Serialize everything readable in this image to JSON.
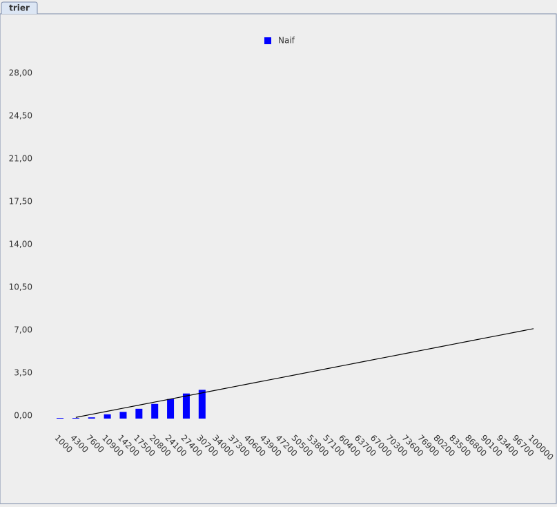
{
  "tab": {
    "label": "trier"
  },
  "chart_data": {
    "type": "bar",
    "categories": [
      "1000",
      "4300",
      "7600",
      "10900",
      "14200",
      "17500",
      "20800",
      "24100",
      "27400",
      "30700",
      "34000",
      "37300",
      "40600",
      "43900",
      "47200",
      "50500",
      "53800",
      "57100",
      "60400",
      "63700",
      "67000",
      "70300",
      "73600",
      "76900",
      "80200",
      "83500",
      "86800",
      "90100",
      "93400",
      "96700",
      "100000"
    ],
    "series": [
      {
        "name": "Naif",
        "color": "#0000ff",
        "values": [
          0,
          0,
          0.1,
          0.35,
          0.55,
          0.8,
          1.2,
          1.6,
          2.05,
          2.35,
          null,
          null,
          null,
          null,
          null,
          null,
          null,
          null,
          null,
          null,
          null,
          null,
          null,
          null,
          null,
          null,
          null,
          null,
          null,
          null,
          null
        ]
      },
      {
        "type": "line",
        "color": "#000000",
        "values": [
          null,
          0.1,
          0.35,
          0.6,
          0.85,
          1.1,
          1.35,
          1.6,
          1.85,
          2.1,
          2.35,
          2.6,
          2.85,
          3.1,
          3.35,
          3.6,
          3.85,
          4.1,
          4.35,
          4.6,
          4.85,
          5.1,
          5.35,
          5.6,
          5.85,
          6.1,
          6.35,
          6.6,
          6.85,
          7.1,
          7.35
        ]
      }
    ],
    "ylim": [
      0,
      28
    ],
    "yticks": [
      {
        "value": 0,
        "label": "0,00"
      },
      {
        "value": 3.5,
        "label": "3,50"
      },
      {
        "value": 7,
        "label": "7,00"
      },
      {
        "value": 10.5,
        "label": "10,50"
      },
      {
        "value": 14,
        "label": "14,00"
      },
      {
        "value": 17.5,
        "label": "17,50"
      },
      {
        "value": 21,
        "label": "21,00"
      },
      {
        "value": 24.5,
        "label": "24,50"
      },
      {
        "value": 28,
        "label": "28,00"
      }
    ],
    "legend": "top"
  }
}
